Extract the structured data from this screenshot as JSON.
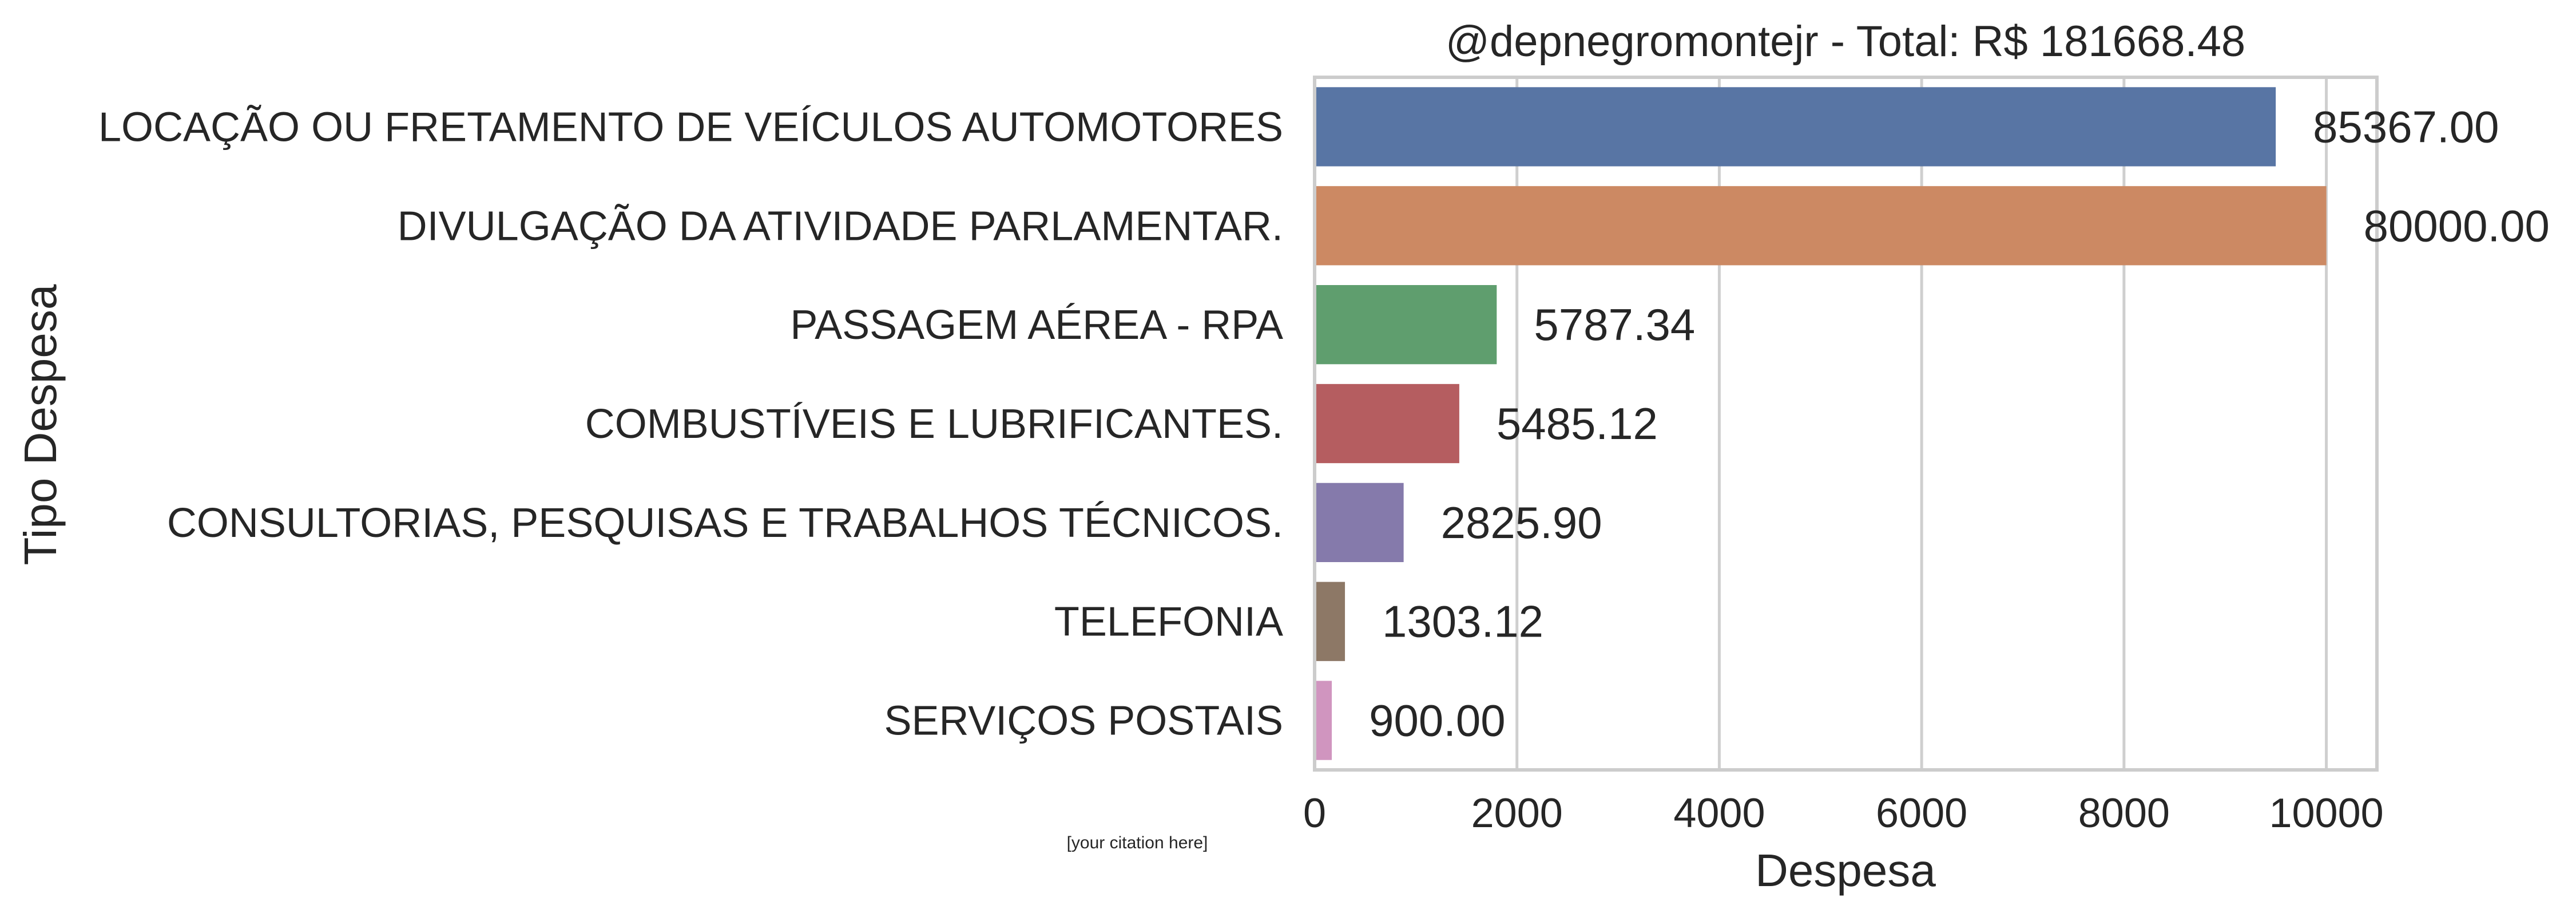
{
  "chart_data": {
    "type": "bar",
    "orientation": "horizontal",
    "title": "@depnegromontejr - Total: R$ 181668.48",
    "xlabel": "Despesa",
    "ylabel": "Tipo Despesa",
    "xlim": [
      0,
      10500
    ],
    "xticks": [
      0,
      2000,
      4000,
      6000,
      8000,
      10000
    ],
    "grid": "vertical",
    "categories": [
      "LOCAÇÃO OU FRETAMENTO DE VEÍCULOS AUTOMOTORES",
      "DIVULGAÇÃO DA ATIVIDADE PARLAMENTAR.",
      "PASSAGEM AÉREA - RPA",
      "COMBUSTÍVEIS E LUBRIFICANTES.",
      "CONSULTORIAS, PESQUISAS E TRABALHOS TÉCNICOS.",
      "TELEFONIA",
      "SERVIÇOS POSTAIS"
    ],
    "values": [
      9500,
      10000,
      1800,
      1430,
      880,
      300,
      170
    ],
    "data_labels": [
      "85367.00",
      "80000.00",
      "5787.34",
      "5485.12",
      "2825.90",
      "1303.12",
      "900.00"
    ],
    "colors": [
      "#5875a4",
      "#cc8963",
      "#5f9e6e",
      "#b55d60",
      "#857aab",
      "#8d7866",
      "#d095bf"
    ]
  },
  "citation": "[your citation here]"
}
